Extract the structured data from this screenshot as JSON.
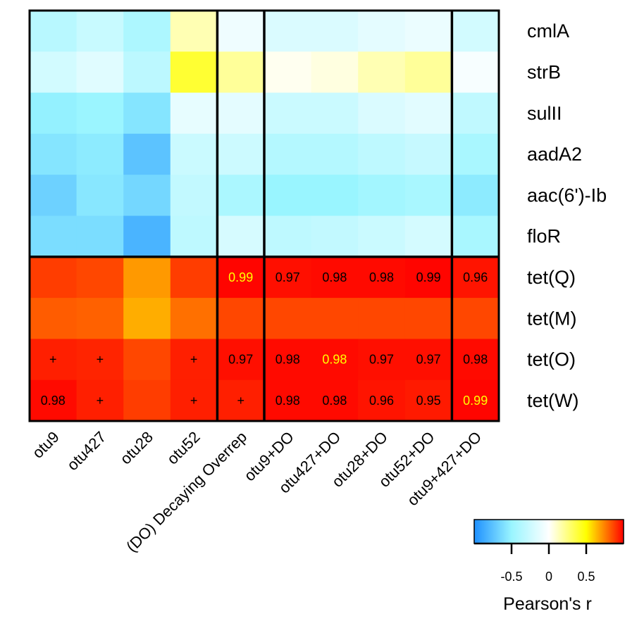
{
  "chart_data": {
    "type": "heatmap",
    "title": "",
    "rows": [
      "cmlA",
      "strB",
      "sulII",
      "aadA2",
      "aac(6')-Ib",
      "floR",
      "tet(Q)",
      "tet(M)",
      "tet(O)",
      "tet(W)"
    ],
    "columns": [
      "otu9",
      "otu427",
      "otu28",
      "otu52",
      "(DO) Decaying Overrep",
      "otu9+DO",
      "otu427+DO",
      "otu28+DO",
      "otu52+DO",
      "otu9+427+DO"
    ],
    "values": [
      [
        -0.35,
        -0.27,
        -0.4,
        0.15,
        -0.08,
        -0.18,
        -0.18,
        -0.13,
        -0.1,
        -0.22
      ],
      [
        -0.22,
        -0.15,
        -0.33,
        0.4,
        0.2,
        0.03,
        0.06,
        0.15,
        0.2,
        -0.04
      ],
      [
        -0.52,
        -0.49,
        -0.58,
        -0.12,
        -0.13,
        -0.26,
        -0.26,
        -0.18,
        -0.14,
        -0.31
      ],
      [
        -0.58,
        -0.55,
        -0.75,
        -0.26,
        -0.25,
        -0.37,
        -0.37,
        -0.32,
        -0.28,
        -0.42
      ],
      [
        -0.68,
        -0.57,
        -0.65,
        -0.3,
        -0.41,
        -0.5,
        -0.5,
        -0.45,
        -0.42,
        -0.55
      ],
      [
        -0.62,
        -0.62,
        -0.82,
        -0.32,
        -0.2,
        -0.32,
        -0.3,
        -0.26,
        -0.21,
        -0.42
      ],
      [
        0.88,
        0.86,
        0.7,
        0.88,
        0.99,
        0.97,
        0.98,
        0.98,
        0.99,
        0.96
      ],
      [
        0.82,
        0.81,
        0.66,
        0.78,
        0.86,
        0.86,
        0.86,
        0.86,
        0.86,
        0.86
      ],
      [
        0.94,
        0.93,
        0.86,
        0.94,
        0.97,
        0.98,
        0.98,
        0.97,
        0.97,
        0.98
      ],
      [
        0.98,
        0.94,
        0.88,
        0.94,
        0.94,
        0.98,
        0.98,
        0.96,
        0.95,
        0.99
      ]
    ],
    "annotations": [
      {
        "row": 6,
        "col": 4,
        "text": "0.99",
        "color": "#FFFF00"
      },
      {
        "row": 6,
        "col": 5,
        "text": "0.97",
        "color": "#000000"
      },
      {
        "row": 6,
        "col": 6,
        "text": "0.98",
        "color": "#000000"
      },
      {
        "row": 6,
        "col": 7,
        "text": "0.98",
        "color": "#000000"
      },
      {
        "row": 6,
        "col": 8,
        "text": "0.99",
        "color": "#000000"
      },
      {
        "row": 6,
        "col": 9,
        "text": "0.96",
        "color": "#000000"
      },
      {
        "row": 8,
        "col": 0,
        "text": "+",
        "color": "#000000"
      },
      {
        "row": 8,
        "col": 1,
        "text": "+",
        "color": "#000000"
      },
      {
        "row": 8,
        "col": 3,
        "text": "+",
        "color": "#000000"
      },
      {
        "row": 8,
        "col": 4,
        "text": "0.97",
        "color": "#000000"
      },
      {
        "row": 8,
        "col": 5,
        "text": "0.98",
        "color": "#000000"
      },
      {
        "row": 8,
        "col": 6,
        "text": "0.98",
        "color": "#FFFF00"
      },
      {
        "row": 8,
        "col": 7,
        "text": "0.97",
        "color": "#000000"
      },
      {
        "row": 8,
        "col": 8,
        "text": "0.97",
        "color": "#000000"
      },
      {
        "row": 8,
        "col": 9,
        "text": "0.98",
        "color": "#000000"
      },
      {
        "row": 9,
        "col": 0,
        "text": "0.98",
        "color": "#000000"
      },
      {
        "row": 9,
        "col": 1,
        "text": "+",
        "color": "#000000"
      },
      {
        "row": 9,
        "col": 3,
        "text": "+",
        "color": "#000000"
      },
      {
        "row": 9,
        "col": 4,
        "text": "+",
        "color": "#000000"
      },
      {
        "row": 9,
        "col": 5,
        "text": "0.98",
        "color": "#000000"
      },
      {
        "row": 9,
        "col": 6,
        "text": "0.98",
        "color": "#000000"
      },
      {
        "row": 9,
        "col": 7,
        "text": "0.96",
        "color": "#000000"
      },
      {
        "row": 9,
        "col": 8,
        "text": "0.95",
        "color": "#000000"
      },
      {
        "row": 9,
        "col": 9,
        "text": "0.99",
        "color": "#FFFF00"
      }
    ],
    "row_groups": [
      [
        0,
        5
      ],
      [
        6,
        9
      ]
    ],
    "column_groups": [
      [
        0,
        3
      ],
      [
        4,
        4
      ],
      [
        5,
        8
      ],
      [
        9,
        9
      ]
    ],
    "colorbar": {
      "title": "Pearson's r",
      "range": [
        -1,
        1
      ],
      "ticks": [
        -0.5,
        0,
        0.5
      ],
      "tick_labels": [
        "-0.5",
        "0",
        "0.5"
      ],
      "colors": [
        "#1E90FF",
        "#99F5FF",
        "#FFFFFF",
        "#FFFF00",
        "#FF0000"
      ],
      "placement": "bottom-right"
    },
    "xlabel": "",
    "ylabel": ""
  }
}
